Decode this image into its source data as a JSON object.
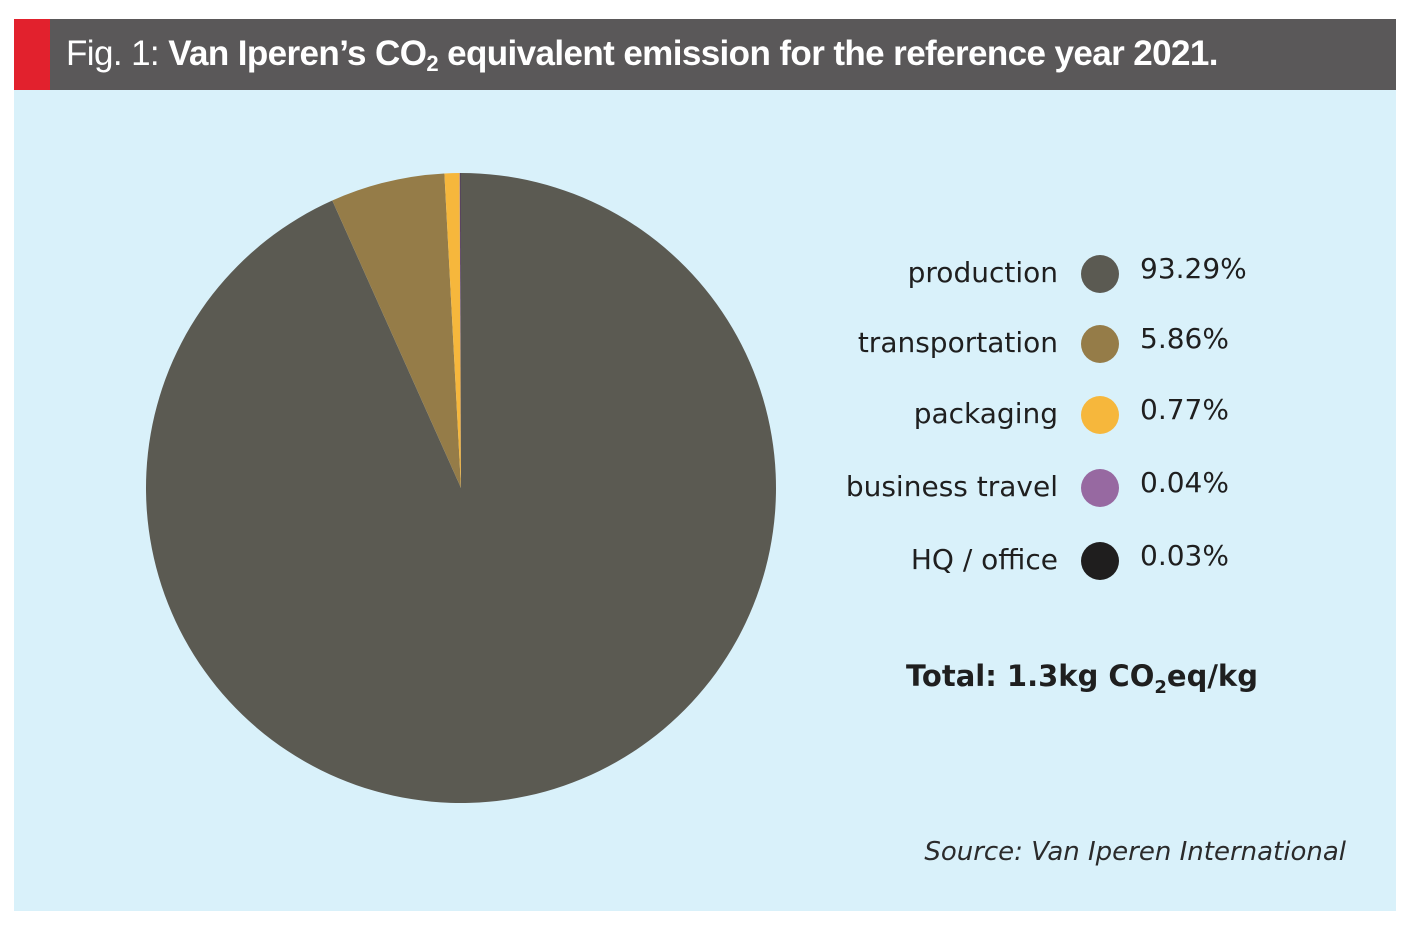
{
  "header": {
    "prefix": "Fig. 1: ",
    "title_part1": "Van Iperen’s CO",
    "title_sub": "2",
    "title_part2": " equivalent emission for the reference year 2021.",
    "bar_color": "#5a5859",
    "accent_color": "#e2212d"
  },
  "chart_data": {
    "type": "pie",
    "title": "Van Iperen’s CO2 equivalent emission for the reference year 2021.",
    "legend_position": "right",
    "slices": [
      {
        "label": "production",
        "value": 93.29,
        "value_label": "93.29%",
        "color": "#5b5a52"
      },
      {
        "label": "transportation",
        "value": 5.86,
        "value_label": "5.86%",
        "color": "#957c48"
      },
      {
        "label": "packaging",
        "value": 0.77,
        "value_label": "0.77%",
        "color": "#f6b73c"
      },
      {
        "label": "business travel",
        "value": 0.04,
        "value_label": "0.04%",
        "color": "#9769a1"
      },
      {
        "label": "HQ / office",
        "value": 0.03,
        "value_label": "0.03%",
        "color": "#1f1e1e"
      }
    ]
  },
  "total": {
    "prefix": "Total:  1.3kg CO",
    "sub": "2",
    "suffix": "eq/kg"
  },
  "source": "Source: Van Iperen International"
}
